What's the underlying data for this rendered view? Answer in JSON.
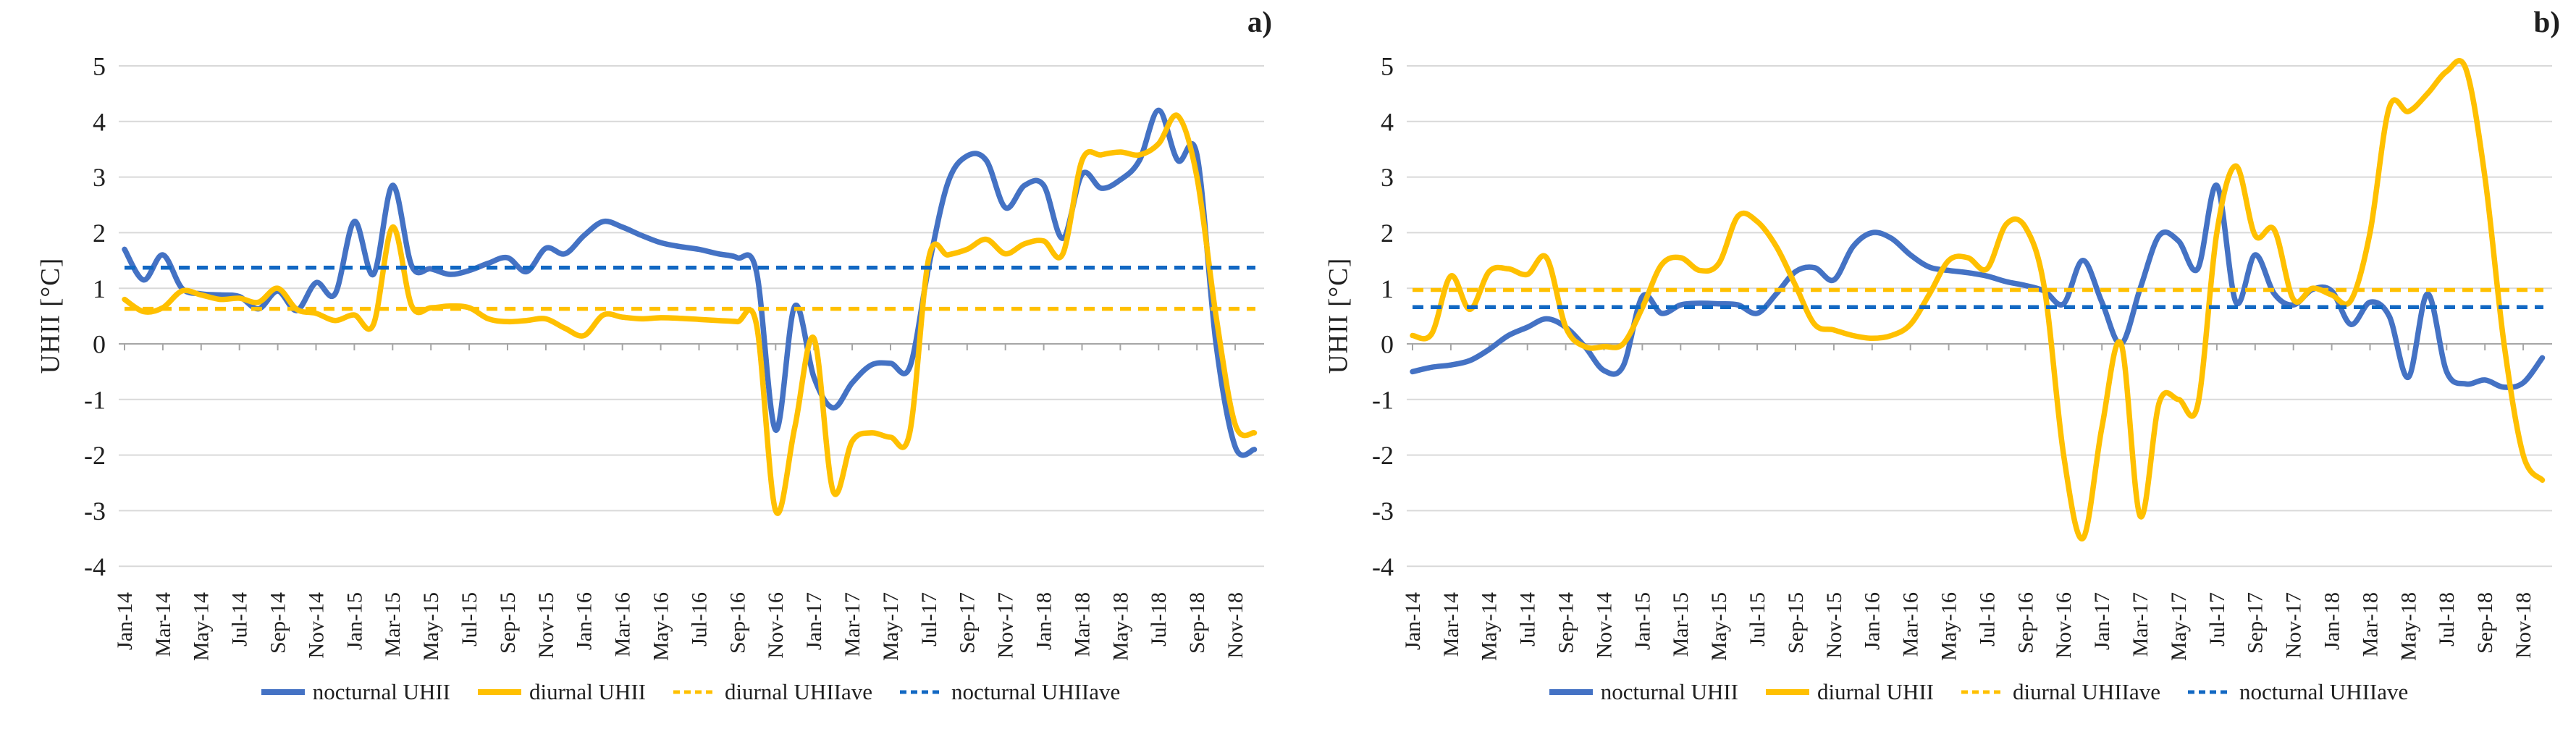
{
  "figure": {
    "description": "Monthly nocturnal and diurnal Urban Heat Island Intensity (UHII) with period averages, Jan-2014 to Dec-2018, two site panels",
    "background": "#ffffff"
  },
  "chart_data": [
    {
      "type": "line",
      "panel_label": "a)",
      "ylabel": "UHII [°C]",
      "ylim": [
        -4,
        5
      ],
      "ytick_labels": [
        "5",
        "4",
        "3",
        "2",
        "1",
        "0",
        "-1",
        "-2",
        "-3",
        "-4"
      ],
      "grid": "horizontal",
      "legend_position": "bottom",
      "xtick_shown_every": 2,
      "x": [
        "Jan-14",
        "Feb-14",
        "Mar-14",
        "Apr-14",
        "May-14",
        "Jun-14",
        "Jul-14",
        "Aug-14",
        "Sep-14",
        "Oct-14",
        "Nov-14",
        "Dec-14",
        "Jan-15",
        "Feb-15",
        "Mar-15",
        "Apr-15",
        "May-15",
        "Jun-15",
        "Jul-15",
        "Aug-15",
        "Sep-15",
        "Oct-15",
        "Nov-15",
        "Dec-15",
        "Jan-16",
        "Feb-16",
        "Mar-16",
        "Apr-16",
        "May-16",
        "Jun-16",
        "Jul-16",
        "Aug-16",
        "Sep-16",
        "Oct-16",
        "Nov-16",
        "Dec-16",
        "Jan-17",
        "Feb-17",
        "Mar-17",
        "Apr-17",
        "May-17",
        "Jun-17",
        "Jul-17",
        "Aug-17",
        "Sep-17",
        "Oct-17",
        "Nov-17",
        "Dec-17",
        "Jan-18",
        "Feb-18",
        "Mar-18",
        "Apr-18",
        "May-18",
        "Jun-18",
        "Jul-18",
        "Aug-18",
        "Sep-18",
        "Oct-18",
        "Nov-18",
        "Dec-18"
      ],
      "series": [
        {
          "name": "nocturnal UHII",
          "style": "solid",
          "color": "#4472C4",
          "values": [
            1.7,
            1.15,
            1.6,
            1.0,
            0.9,
            0.88,
            0.85,
            0.63,
            0.95,
            0.6,
            1.1,
            0.9,
            2.2,
            1.25,
            2.85,
            1.4,
            1.35,
            1.25,
            1.32,
            1.45,
            1.55,
            1.3,
            1.72,
            1.62,
            1.95,
            2.2,
            2.1,
            1.95,
            1.82,
            1.75,
            1.7,
            1.62,
            1.55,
            1.3,
            -1.55,
            0.68,
            -0.6,
            -1.15,
            -0.7,
            -0.38,
            -0.35,
            -0.42,
            1.4,
            2.9,
            3.38,
            3.3,
            2.45,
            2.85,
            2.85,
            1.9,
            3.05,
            2.8,
            2.95,
            3.3,
            4.2,
            3.3,
            3.4,
            0.0,
            -1.85,
            -1.9
          ]
        },
        {
          "name": "diurnal UHII",
          "style": "solid",
          "color": "#FFC000",
          "values": [
            0.8,
            0.58,
            0.65,
            0.95,
            0.88,
            0.8,
            0.82,
            0.75,
            1.0,
            0.62,
            0.55,
            0.42,
            0.52,
            0.35,
            2.1,
            0.68,
            0.65,
            0.68,
            0.65,
            0.45,
            0.4,
            0.42,
            0.45,
            0.28,
            0.15,
            0.52,
            0.48,
            0.45,
            0.47,
            0.46,
            0.44,
            0.42,
            0.4,
            0.35,
            -3.0,
            -1.5,
            0.1,
            -2.65,
            -1.75,
            -1.6,
            -1.68,
            -1.6,
            1.55,
            1.6,
            1.7,
            1.88,
            1.62,
            1.8,
            1.85,
            1.62,
            3.3,
            3.4,
            3.45,
            3.4,
            3.6,
            4.1,
            3.0,
            0.5,
            -1.45,
            -1.6
          ]
        },
        {
          "name": "diurnal UHIIave",
          "style": "dashed",
          "color": "#FFC000",
          "constant": 0.63
        },
        {
          "name": "nocturnal UHIIave",
          "style": "dashed",
          "color": "#1268C3",
          "constant": 1.37
        }
      ]
    },
    {
      "type": "line",
      "panel_label": "b)",
      "ylabel": "UHII [°C]",
      "ylim": [
        -4,
        5
      ],
      "ytick_labels": [
        "5",
        "4",
        "3",
        "2",
        "1",
        "0",
        "-1",
        "-2",
        "-3",
        "-4"
      ],
      "grid": "horizontal",
      "legend_position": "bottom",
      "xtick_shown_every": 2,
      "x": [
        "Jan-14",
        "Feb-14",
        "Mar-14",
        "Apr-14",
        "May-14",
        "Jun-14",
        "Jul-14",
        "Aug-14",
        "Sep-14",
        "Oct-14",
        "Nov-14",
        "Dec-14",
        "Jan-15",
        "Feb-15",
        "Mar-15",
        "Apr-15",
        "May-15",
        "Jun-15",
        "Jul-15",
        "Aug-15",
        "Sep-15",
        "Oct-15",
        "Nov-15",
        "Dec-15",
        "Jan-16",
        "Feb-16",
        "Mar-16",
        "Apr-16",
        "May-16",
        "Jun-16",
        "Jul-16",
        "Aug-16",
        "Sep-16",
        "Oct-16",
        "Nov-16",
        "Dec-16",
        "Jan-17",
        "Feb-17",
        "Mar-17",
        "Apr-17",
        "May-17",
        "Jun-17",
        "Jul-17",
        "Aug-17",
        "Sep-17",
        "Oct-17",
        "Nov-17",
        "Dec-17",
        "Jan-18",
        "Feb-18",
        "Mar-18",
        "Apr-18",
        "May-18",
        "Jun-18",
        "Jul-18",
        "Aug-18",
        "Sep-18",
        "Oct-18",
        "Nov-18",
        "Dec-18"
      ],
      "series": [
        {
          "name": "nocturnal UHII",
          "style": "solid",
          "color": "#4472C4",
          "values": [
            -0.5,
            -0.42,
            -0.38,
            -0.3,
            -0.1,
            0.15,
            0.3,
            0.45,
            0.3,
            -0.05,
            -0.48,
            -0.4,
            0.85,
            0.55,
            0.7,
            0.73,
            0.72,
            0.7,
            0.55,
            0.9,
            1.3,
            1.37,
            1.15,
            1.75,
            2.0,
            1.9,
            1.6,
            1.38,
            1.32,
            1.28,
            1.22,
            1.12,
            1.05,
            0.95,
            0.72,
            1.5,
            0.75,
            0.0,
            1.0,
            1.95,
            1.85,
            1.35,
            2.85,
            0.75,
            1.6,
            0.9,
            0.7,
            0.98,
            0.95,
            0.35,
            0.75,
            0.5,
            -0.6,
            0.9,
            -0.5,
            -0.72,
            -0.65,
            -0.78,
            -0.7,
            -0.25
          ]
        },
        {
          "name": "diurnal UHII",
          "style": "solid",
          "color": "#FFC000",
          "values": [
            0.15,
            0.18,
            1.22,
            0.62,
            1.3,
            1.35,
            1.25,
            1.55,
            0.3,
            -0.05,
            -0.05,
            0.0,
            0.65,
            1.42,
            1.55,
            1.32,
            1.45,
            2.3,
            2.2,
            1.75,
            1.05,
            0.35,
            0.25,
            0.15,
            0.1,
            0.15,
            0.35,
            0.9,
            1.5,
            1.55,
            1.35,
            2.15,
            2.1,
            1.0,
            -2.0,
            -3.5,
            -1.5,
            0.0,
            -3.1,
            -1.05,
            -1.0,
            -1.1,
            2.0,
            3.2,
            1.95,
            2.05,
            0.8,
            1.0,
            0.88,
            0.78,
            2.0,
            4.25,
            4.18,
            4.5,
            4.9,
            4.95,
            3.0,
            0.0,
            -2.0,
            -2.45
          ]
        },
        {
          "name": "diurnal UHIIave",
          "style": "dashed",
          "color": "#FFC000",
          "constant": 0.97
        },
        {
          "name": "nocturnal UHIIave",
          "style": "dashed",
          "color": "#1268C3",
          "constant": 0.66
        }
      ]
    }
  ]
}
